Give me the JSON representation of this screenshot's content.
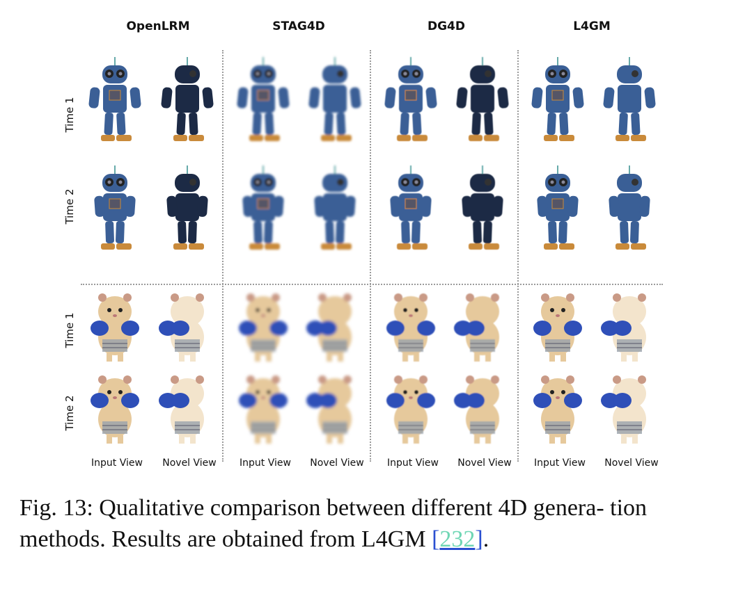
{
  "columns": [
    "OpenLRM",
    "STAG4D",
    "DG4D",
    "L4GM"
  ],
  "row_labels": [
    "Time 1",
    "Time 2",
    "Time 1",
    "Time 2"
  ],
  "view_labels": [
    "Input View",
    "Novel View"
  ],
  "subjects": [
    "robot",
    "hamster"
  ],
  "colors": {
    "robot_blue": "#3a5f96",
    "robot_dark": "#1b2a44",
    "robot_orange": "#c98a3a",
    "hamster_fur": "#e6c99c",
    "hamster_light": "#f3e4cc",
    "glove_blue": "#2f4fb8",
    "separator": "#9a9a9a"
  },
  "caption": {
    "text": "Fig. 13: Qualitative comparison between different 4D genera- tion methods. Results are obtained from L4GM ",
    "bracket_open": "[",
    "ref": "232",
    "bracket_close": "]",
    "end": "."
  }
}
